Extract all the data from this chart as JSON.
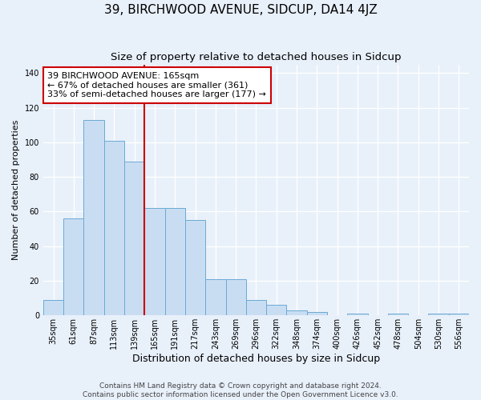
{
  "title": "39, BIRCHWOOD AVENUE, SIDCUP, DA14 4JZ",
  "subtitle": "Size of property relative to detached houses in Sidcup",
  "xlabel": "Distribution of detached houses by size in Sidcup",
  "ylabel": "Number of detached properties",
  "categories": [
    "35sqm",
    "61sqm",
    "87sqm",
    "113sqm",
    "139sqm",
    "165sqm",
    "191sqm",
    "217sqm",
    "243sqm",
    "269sqm",
    "296sqm",
    "322sqm",
    "348sqm",
    "374sqm",
    "400sqm",
    "426sqm",
    "452sqm",
    "478sqm",
    "504sqm",
    "530sqm",
    "556sqm"
  ],
  "bar_values": [
    9,
    56,
    113,
    101,
    89,
    62,
    62,
    55,
    21,
    21,
    9,
    6,
    3,
    2,
    0,
    1,
    0,
    1,
    0,
    1,
    1
  ],
  "bar_color": "#c9ddf2",
  "bar_edge_color": "#6aaad4",
  "vline_index": 5,
  "vline_color": "#cc0000",
  "ylim": [
    0,
    145
  ],
  "yticks": [
    0,
    20,
    40,
    60,
    80,
    100,
    120,
    140
  ],
  "annotation_title": "39 BIRCHWOOD AVENUE: 165sqm",
  "annotation_line1": "← 67% of detached houses are smaller (361)",
  "annotation_line2": "33% of semi-detached houses are larger (177) →",
  "annotation_box_facecolor": "#ffffff",
  "annotation_box_edgecolor": "#cc0000",
  "background_color": "#e8f0fa",
  "grid_color": "#ffffff",
  "footer_line1": "Contains HM Land Registry data © Crown copyright and database right 2024.",
  "footer_line2": "Contains public sector information licensed under the Open Government Licence v3.0.",
  "title_fontsize": 11,
  "subtitle_fontsize": 9.5,
  "xlabel_fontsize": 9,
  "ylabel_fontsize": 8,
  "tick_fontsize": 7,
  "annotation_fontsize": 8,
  "footer_fontsize": 6.5
}
